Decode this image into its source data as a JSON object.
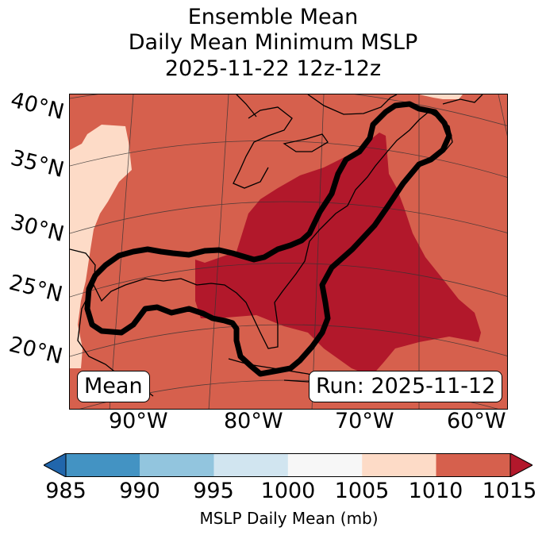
{
  "title": {
    "line1": "Ensemble Mean",
    "line2": "Daily Mean Minimum MSLP",
    "line3": "2025-11-22 12z-12z"
  },
  "map": {
    "lat_labels": [
      "40°N",
      "35°N",
      "30°N",
      "25°N",
      "20°N"
    ],
    "lon_labels": [
      "90°W",
      "80°W",
      "70°W",
      "60°W"
    ],
    "mean_label": "Mean",
    "run_label": "Run: 2025-11-12",
    "colors": {
      "c1005_1010": "#fddbc7",
      "c1010_1015": "#d6604d",
      "over_1015": "#b2182b",
      "contour": "#000000"
    }
  },
  "colorbar": {
    "label": "MSLP Daily Mean (mb)",
    "ticks": [
      "985",
      "990",
      "995",
      "1000",
      "1005",
      "1010",
      "1015"
    ],
    "bins": [
      {
        "from": 985,
        "to": 990,
        "color": "#4393c3"
      },
      {
        "from": 990,
        "to": 995,
        "color": "#92c5de"
      },
      {
        "from": 995,
        "to": 1000,
        "color": "#d1e5f0"
      },
      {
        "from": 1000,
        "to": 1005,
        "color": "#f7f7f7"
      },
      {
        "from": 1005,
        "to": 1010,
        "color": "#fddbc7"
      },
      {
        "from": 1010,
        "to": 1015,
        "color": "#d6604d"
      }
    ],
    "under_color": "#2166ac",
    "over_color": "#b2182b"
  }
}
